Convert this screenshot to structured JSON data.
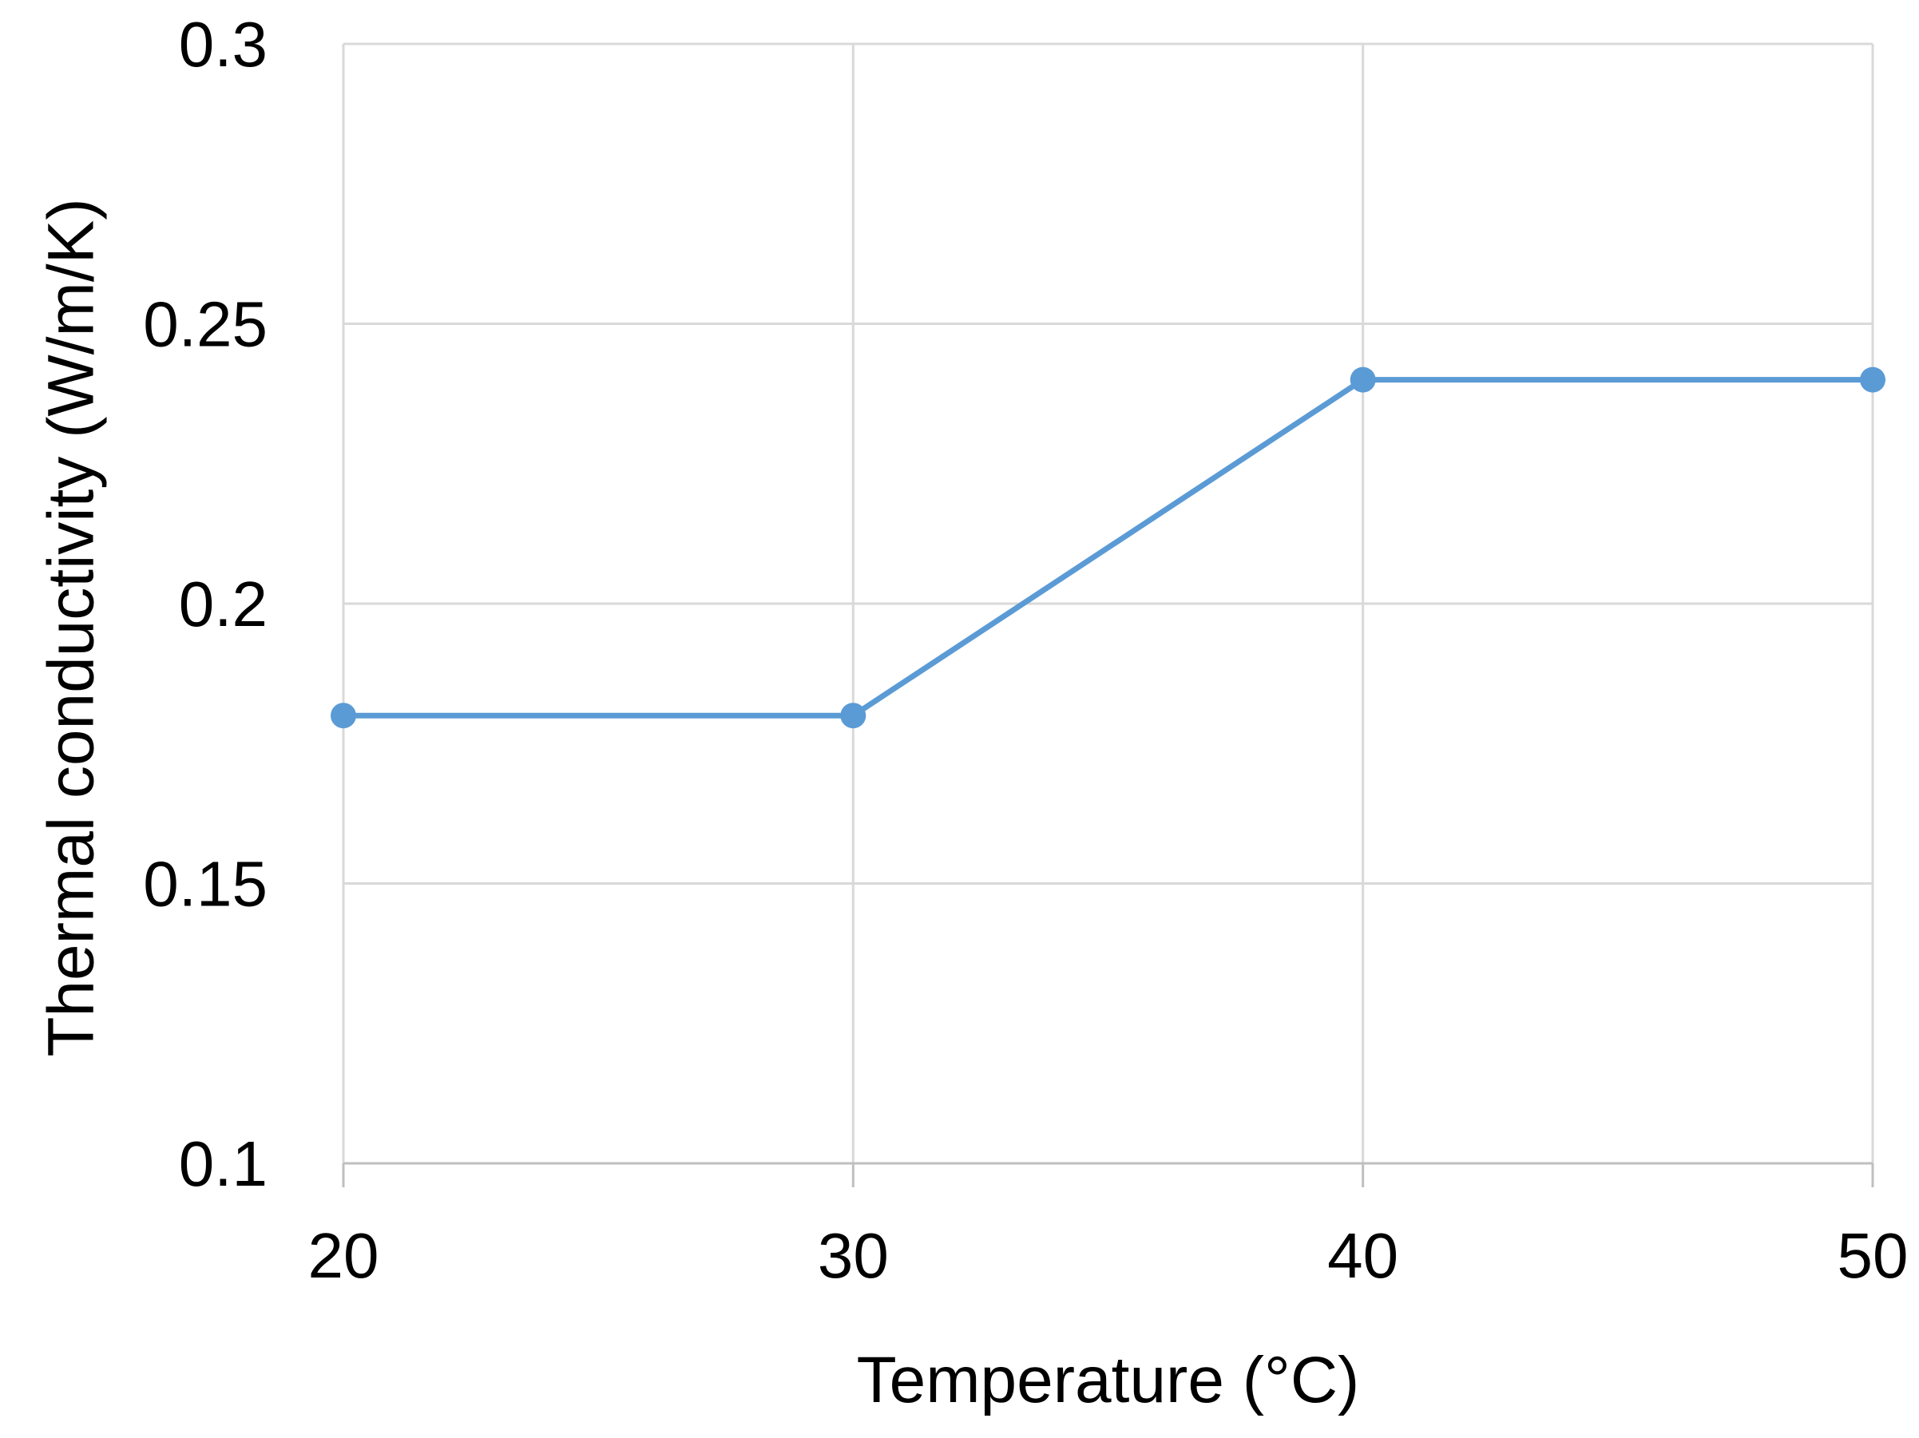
{
  "chart_data": {
    "type": "line",
    "title": "",
    "xlabel": "Temperature (°C)",
    "ylabel": "Thermal conductivity (W/m/K)",
    "xlim": [
      20,
      50
    ],
    "ylim": [
      0.1,
      0.3
    ],
    "x_ticks": [
      "20",
      "30",
      "40",
      "50"
    ],
    "y_ticks": [
      "0.1",
      "0.15",
      "0.2",
      "0.25",
      "0.3"
    ],
    "grid": true,
    "legend": "none",
    "series": [
      {
        "color": "#5b9bd5",
        "x": [
          20,
          30,
          40,
          50
        ],
        "y": [
          0.18,
          0.18,
          0.24,
          0.24
        ]
      }
    ]
  }
}
